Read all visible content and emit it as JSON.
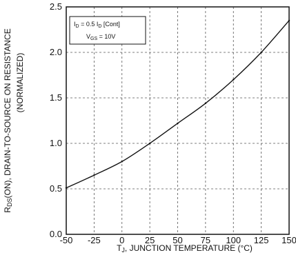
{
  "chart_data": {
    "type": "line",
    "xlabel_main": "T",
    "xlabel_sub": "J",
    "xlabel_rest": ", JUNCTION TEMPERATURE (°C)",
    "ylabel_main": "R",
    "ylabel_sub": "DS",
    "ylabel_rest": "(ON), DRAIN-TO-SOURCE ON RESISTANCE",
    "ylabel_line2": "(NORMALIZED)",
    "xlim": [
      -50,
      150
    ],
    "ylim": [
      0.0,
      2.5
    ],
    "x_ticks": [
      -50,
      -25,
      0,
      25,
      50,
      75,
      100,
      125,
      150
    ],
    "x_tick_labels": [
      "-50",
      "-25",
      "0",
      "25",
      "50",
      "75",
      "100",
      "125",
      "150"
    ],
    "y_ticks": [
      0.0,
      0.5,
      1.0,
      1.5,
      2.0,
      2.5
    ],
    "y_tick_labels": [
      "0.0",
      "0.5",
      "1.0",
      "1.5",
      "2.0",
      "2.5"
    ],
    "grid": true,
    "legend": {
      "placement": "top-left",
      "line1": {
        "main": "I",
        "sub": "D",
        "rest": " = 0.5 I",
        "sub2": "D",
        "rest2": " [Cont]"
      },
      "line2": {
        "main": "V",
        "sub": "GS",
        "rest": " = 10V"
      }
    },
    "series": [
      {
        "x": [
          -50,
          -25,
          0,
          25,
          50,
          75,
          100,
          125,
          150
        ],
        "y": [
          0.51,
          0.65,
          0.8,
          1.0,
          1.22,
          1.44,
          1.7,
          2.0,
          2.35
        ]
      }
    ],
    "colors": {
      "line": "#111111",
      "grid": "#555555",
      "frame": "#111111"
    }
  }
}
